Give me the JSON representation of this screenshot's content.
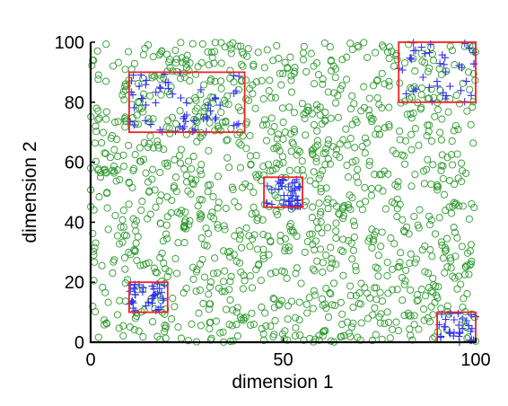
{
  "chart_data": {
    "type": "scatter",
    "xlabel": "dimension 1",
    "ylabel": "dimension 2",
    "xlim": [
      0,
      100
    ],
    "ylim": [
      0,
      100
    ],
    "x_ticks": [
      "0",
      "50",
      "100"
    ],
    "y_ticks": [
      "0",
      "20",
      "40",
      "60",
      "80",
      "100"
    ],
    "grid": false,
    "legend": "none",
    "background_series": {
      "marker": "circle",
      "color": "#2e9a2e",
      "count_estimate": 1300,
      "distribution": "uniform over [0,100] x [0,100]"
    },
    "clusters": [
      {
        "marker": "plus",
        "color": "#3333ee",
        "box": {
          "x": [
            10,
            40
          ],
          "y": [
            70,
            90
          ]
        },
        "count_estimate": 60
      },
      {
        "marker": "plus",
        "color": "#3333ee",
        "box": {
          "x": [
            80,
            100
          ],
          "y": [
            80,
            100
          ]
        },
        "count_estimate": 40
      },
      {
        "marker": "plus",
        "color": "#3333ee",
        "box": {
          "x": [
            45,
            55
          ],
          "y": [
            45,
            55
          ]
        },
        "count_estimate": 40
      },
      {
        "marker": "plus",
        "color": "#3333ee",
        "box": {
          "x": [
            10,
            20
          ],
          "y": [
            10,
            20
          ]
        },
        "count_estimate": 35
      },
      {
        "marker": "plus",
        "color": "#3333ee",
        "box": {
          "x": [
            90,
            100
          ],
          "y": [
            0,
            10
          ]
        },
        "count_estimate": 30
      }
    ],
    "box_color": "#ee2222",
    "axis_color": "#000000"
  }
}
